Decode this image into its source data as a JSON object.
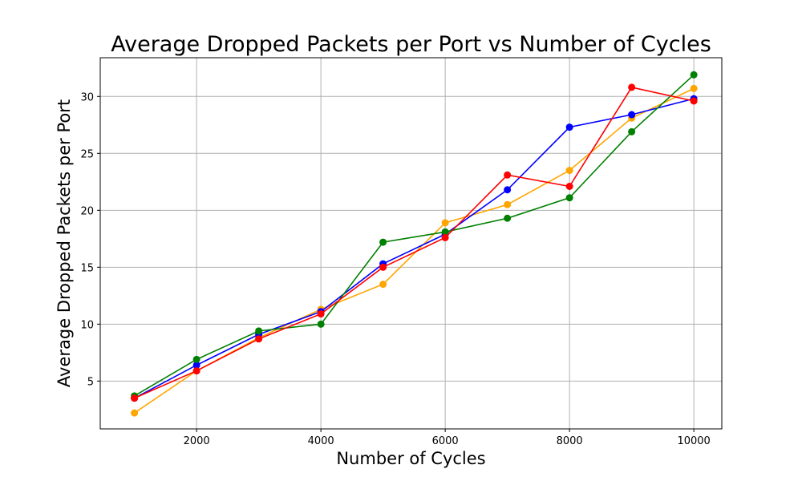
{
  "chart_data": {
    "type": "line",
    "title": "Average Dropped Packets per Port vs Number of Cycles",
    "xlabel": "Number of Cycles",
    "ylabel": "Average Dropped Packets per Port",
    "xlim": [
      450,
      10450
    ],
    "ylim": [
      0.8,
      33.4
    ],
    "grid": true,
    "marker": "circle",
    "x": [
      1000,
      2000,
      3000,
      4000,
      5000,
      6000,
      7000,
      8000,
      9000,
      10000
    ],
    "x_ticks": [
      2000,
      4000,
      6000,
      8000,
      10000
    ],
    "x_tick_labels": [
      "2000",
      "4000",
      "6000",
      "8000",
      "10000"
    ],
    "y_ticks": [
      5,
      10,
      15,
      20,
      25,
      30
    ],
    "y_tick_labels": [
      "5",
      "10",
      "15",
      "20",
      "25",
      "30"
    ],
    "series": [
      {
        "color": "#ffa500",
        "values": [
          2.2,
          5.9,
          8.8,
          11.3,
          13.5,
          18.9,
          20.5,
          23.5,
          28.1,
          30.7
        ]
      },
      {
        "color": "#0000ff",
        "values": [
          3.5,
          6.4,
          9.1,
          11.1,
          15.3,
          17.9,
          21.8,
          27.3,
          28.4,
          29.8
        ]
      },
      {
        "color": "#008000",
        "values": [
          3.7,
          6.9,
          9.4,
          10.0,
          17.2,
          18.1,
          19.3,
          21.1,
          26.9,
          31.9
        ]
      },
      {
        "color": "#ff0000",
        "values": [
          3.5,
          5.9,
          8.7,
          10.9,
          15.0,
          17.6,
          23.1,
          22.1,
          30.8,
          29.6
        ]
      }
    ]
  }
}
